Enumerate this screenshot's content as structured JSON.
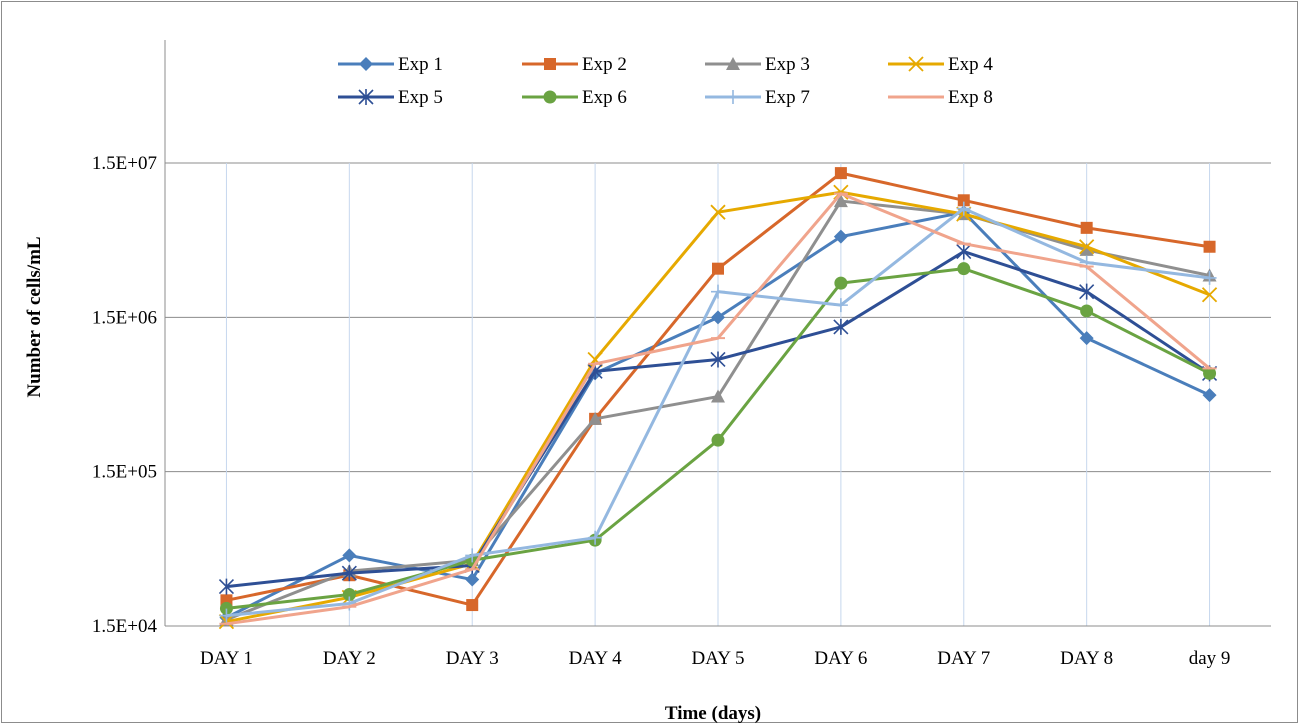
{
  "chart_data": {
    "type": "line",
    "title": "",
    "xlabel": "Time (days)",
    "ylabel": "Number of cells/mL",
    "y_scale": "log",
    "ylim": [
      15000,
      15000000
    ],
    "y_ticks": [
      15000,
      150000,
      1500000,
      15000000
    ],
    "y_tick_labels": [
      "1.5E+04",
      "1.5E+05",
      "1.5E+06",
      "1.5E+07"
    ],
    "grid": "horizontal major gridlines",
    "legend_position": "top",
    "categories": [
      "DAY 1",
      "DAY 2",
      "DAY 3",
      "DAY 4",
      "DAY 5",
      "DAY 6",
      "DAY 7",
      "DAY 8",
      "day 9"
    ],
    "series": [
      {
        "name": "Exp 1",
        "color": "#4a7ebb",
        "marker": "diamond",
        "values": [
          17000,
          43000,
          30000,
          650000,
          1500000,
          5000000,
          7200000,
          1100000,
          470000
        ]
      },
      {
        "name": "Exp 2",
        "color": "#d7672a",
        "marker": "square",
        "values": [
          22000,
          32000,
          20500,
          330000,
          3100000,
          12900000,
          8600000,
          5700000,
          4300000
        ]
      },
      {
        "name": "Exp 3",
        "color": "#8f8f8f",
        "marker": "triangle",
        "values": [
          16500,
          34000,
          40000,
          330000,
          460000,
          8500000,
          7000000,
          4100000,
          2800000
        ]
      },
      {
        "name": "Exp 4",
        "color": "#e6a900",
        "marker": "x",
        "values": [
          16000,
          23000,
          38000,
          800000,
          7200000,
          9700000,
          7000000,
          4300000,
          2100000
        ]
      },
      {
        "name": "Exp 5",
        "color": "#2e4f95",
        "marker": "star",
        "values": [
          27000,
          33000,
          37000,
          670000,
          800000,
          1300000,
          4000000,
          2200000,
          650000
        ]
      },
      {
        "name": "Exp 6",
        "color": "#6aa342",
        "marker": "circle",
        "values": [
          19500,
          24000,
          40000,
          54000,
          240000,
          2500000,
          3100000,
          1650000,
          650000
        ]
      },
      {
        "name": "Exp 7",
        "color": "#94b8e0",
        "marker": "plus",
        "values": [
          17500,
          21000,
          43000,
          56000,
          2200000,
          1800000,
          7600000,
          3400000,
          2700000
        ]
      },
      {
        "name": "Exp 8",
        "color": "#f0a48c",
        "marker": "dash",
        "values": [
          15500,
          20000,
          35000,
          750000,
          1100000,
          9500000,
          4500000,
          3200000,
          700000
        ]
      }
    ]
  }
}
